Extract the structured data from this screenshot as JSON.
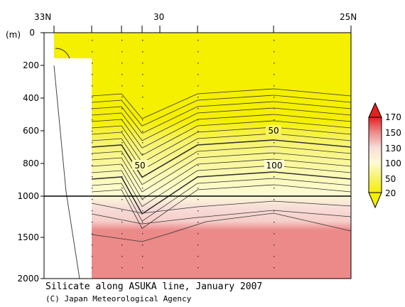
{
  "chart_data": {
    "type": "contour",
    "title": "Silicate along ASUKA line, January 2007",
    "credit": "(C) Japan Meteorological Agency",
    "ylabel": "(m)",
    "x_ticks": [
      "33N",
      "30",
      "25N"
    ],
    "x_range": [
      33,
      25
    ],
    "y_ticks": [
      "0",
      "200",
      "400",
      "600",
      "800",
      "1000",
      "1500",
      "2000"
    ],
    "y_range": [
      0,
      2000
    ],
    "y_scale_note": "depth axis stretched above 1000 m",
    "contour_labels": [
      {
        "text": "50",
        "depth": 615,
        "lat": 28.3
      },
      {
        "text": "50",
        "depth": 810,
        "lat": 30.5
      },
      {
        "text": "100",
        "depth": 810,
        "lat": 28.3
      }
    ],
    "colorbar": {
      "ticks": [
        "170",
        "150",
        "130",
        "100",
        "50",
        "20"
      ],
      "colors": [
        "#e62020",
        "#ec8a8a",
        "#f7dcd8",
        "#fcfbd4",
        "#f7f36d",
        "#f5ef00"
      ]
    }
  }
}
